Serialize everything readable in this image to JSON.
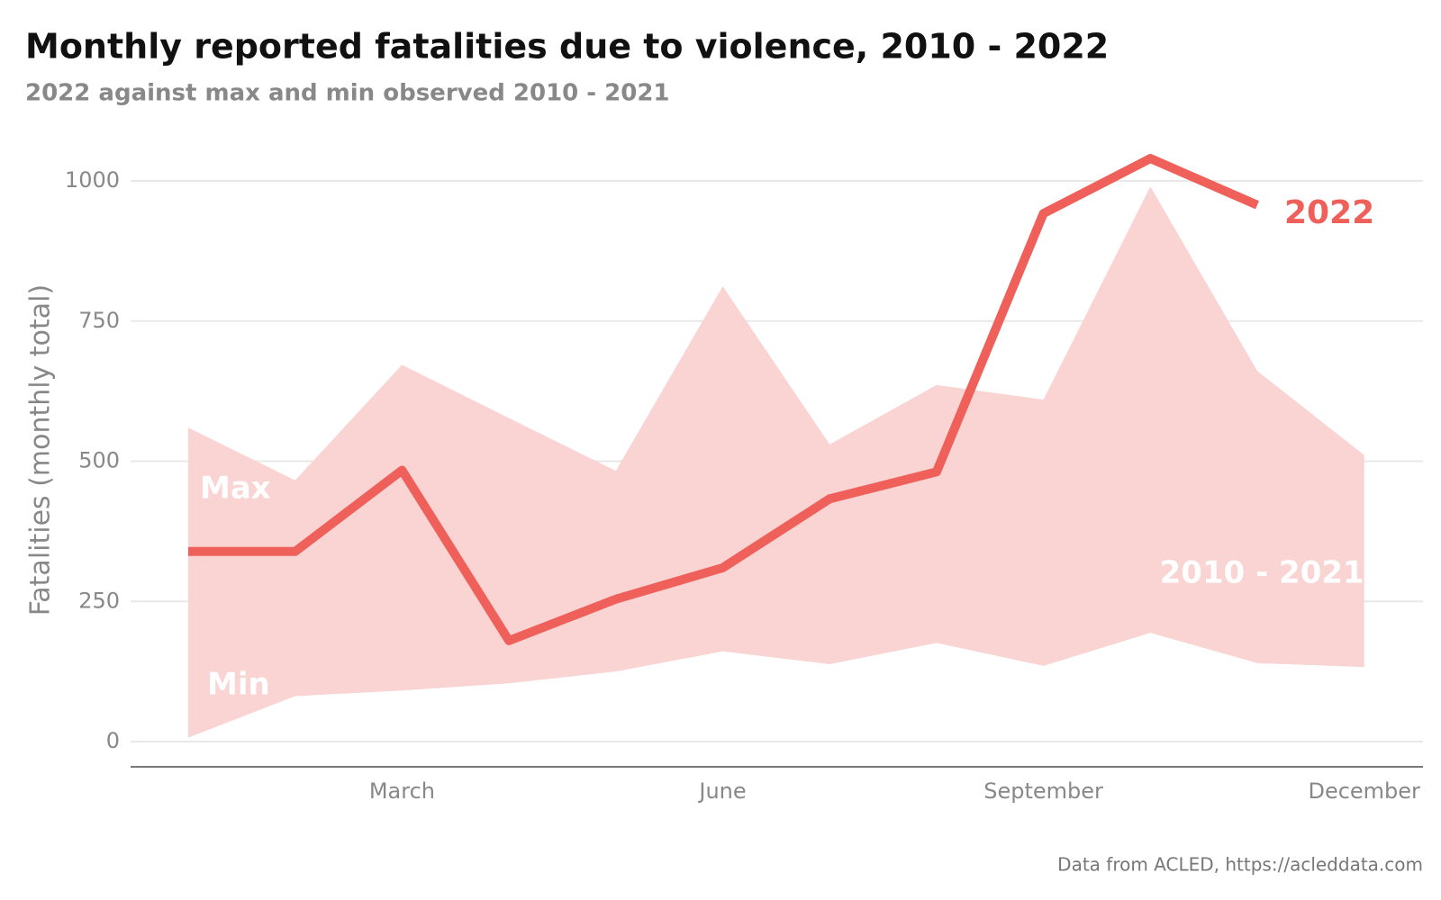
{
  "chart_data": {
    "type": "line-band",
    "title": "Monthly reported fatalities due to violence, 2010 - 2022",
    "subtitle": "2022 against max and min observed 2010 - 2021",
    "y_label": "Fatalities (monthly total)",
    "caption": "Data from ACLED, https://acleddata.com",
    "categories": [
      null,
      null,
      "March",
      null,
      null,
      "June",
      null,
      null,
      "September",
      null,
      null,
      "December"
    ],
    "band": {
      "name": "2010 - 2021",
      "color": "#f9d4d3",
      "upper_label": "Max",
      "lower_label": "Min",
      "upper": [
        560,
        466,
        672,
        577,
        483,
        812,
        530,
        636,
        610,
        990,
        661,
        511
      ],
      "lower": [
        7,
        81,
        91,
        104,
        125,
        161,
        138,
        176,
        135,
        194,
        140,
        133
      ]
    },
    "series": [
      {
        "name": "2022",
        "color": "#ef605a",
        "values": [
          339,
          339,
          484,
          180,
          254,
          310,
          433,
          481,
          942,
          1040,
          957,
          null
        ]
      }
    ],
    "ylim": [
      0,
      1000
    ],
    "yticks": [
      0,
      250,
      500,
      750,
      1000
    ],
    "grid": true
  }
}
